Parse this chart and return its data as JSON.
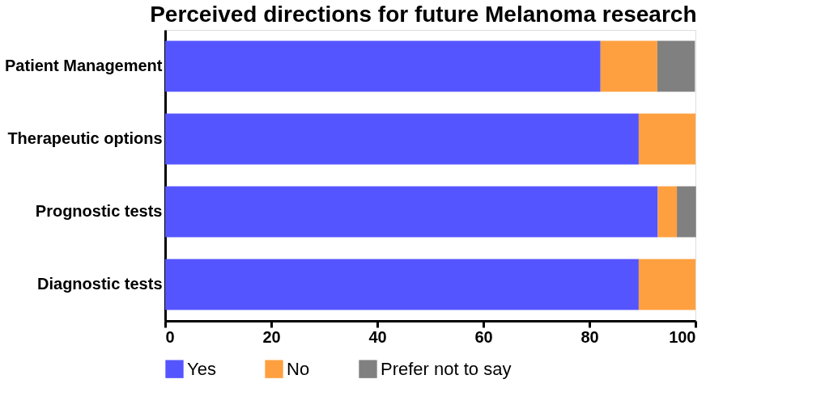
{
  "chart_data": {
    "type": "bar",
    "title": "Perceived directions for future Melanoma research",
    "orientation": "horizontal",
    "stacked": true,
    "categories": [
      "Patient Management",
      "Therapeutic options",
      "Prognostic tests",
      "Diagnostic tests"
    ],
    "series": [
      {
        "name": "Yes",
        "color": "#5555ff",
        "values": [
          82.1,
          89.3,
          92.9,
          89.3
        ]
      },
      {
        "name": "No",
        "color": "#ffa040",
        "values": [
          10.7,
          10.7,
          3.6,
          10.7
        ]
      },
      {
        "name": "Prefer not to say",
        "color": "#808080",
        "values": [
          7.1,
          0,
          3.6,
          0
        ]
      }
    ],
    "xlim": [
      0,
      100
    ],
    "xticks": [
      0,
      20,
      40,
      60,
      80,
      100
    ],
    "grid": false,
    "legend": "bottom"
  }
}
